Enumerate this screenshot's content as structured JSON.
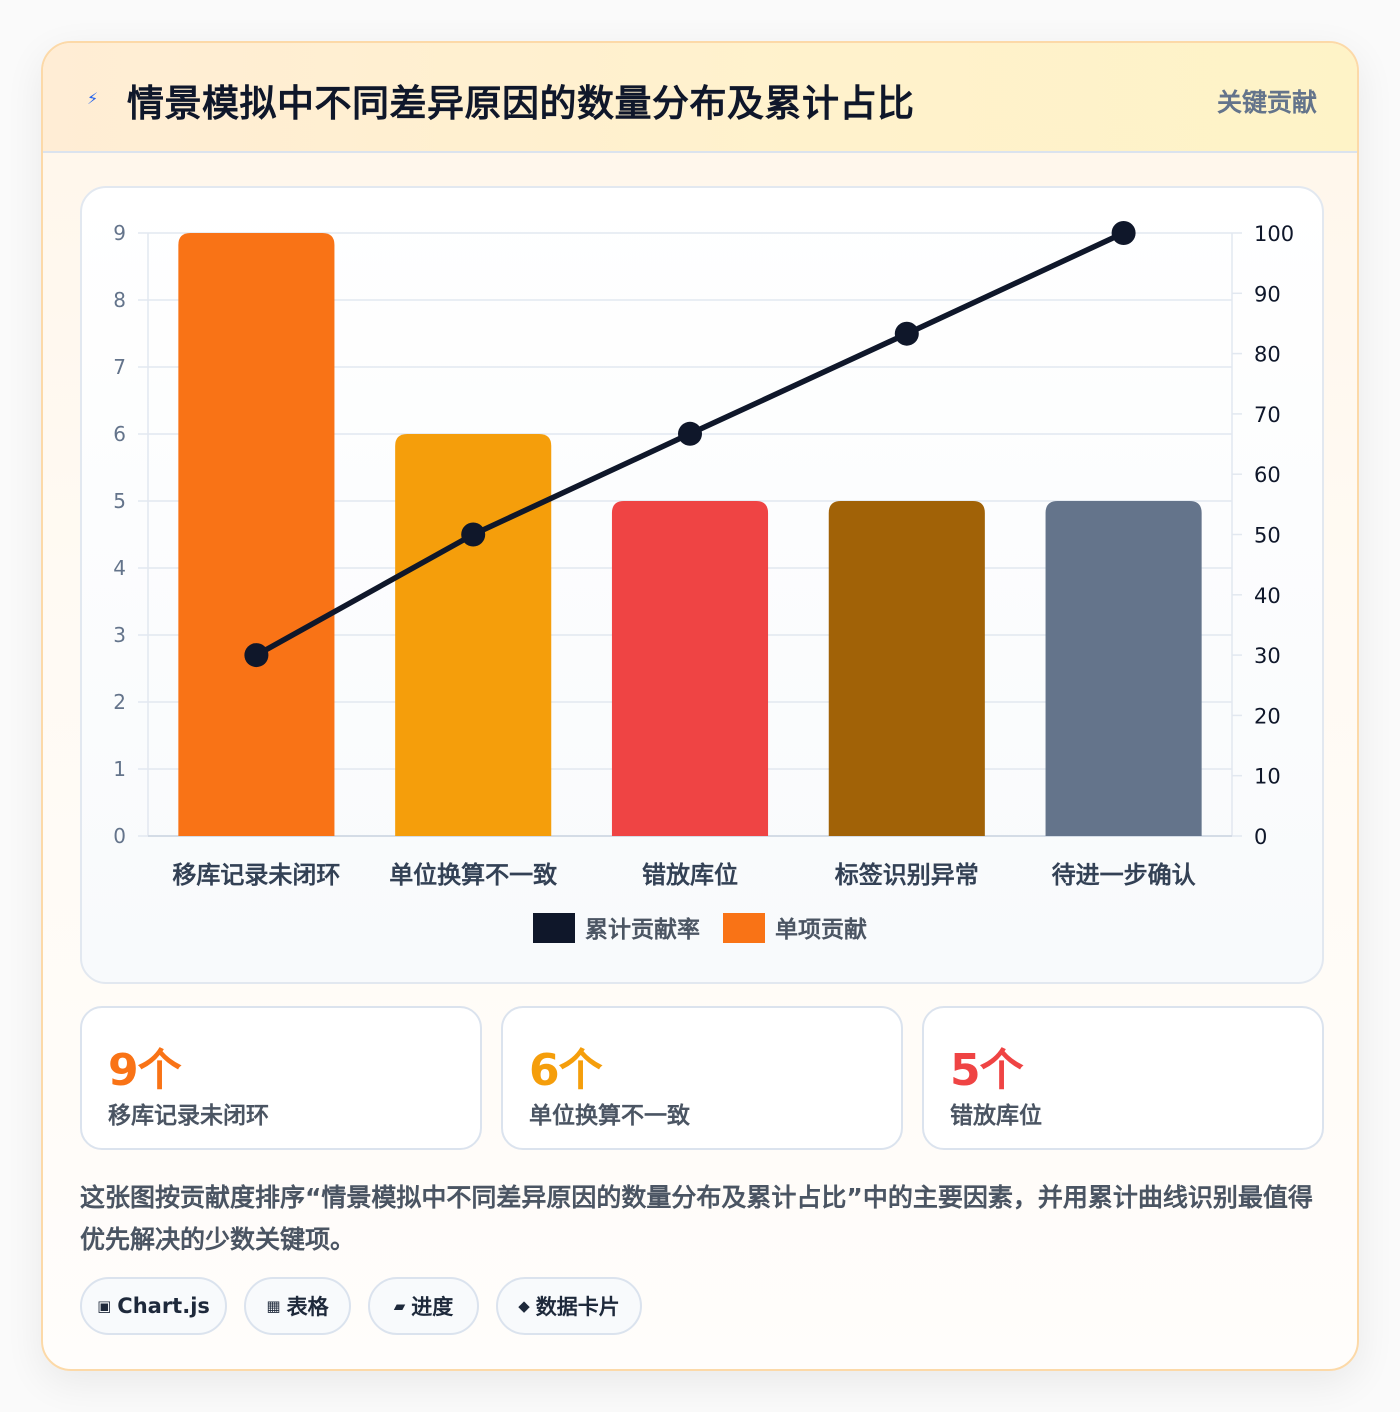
{
  "header": {
    "title": "情景模拟中不同差异原因的数量分布及累计占比",
    "tag": "关键贡献",
    "icon": "lightning-icon"
  },
  "chart_data": {
    "type": "bar",
    "title": "",
    "xlabel": "",
    "ylabel": "",
    "categories": [
      "移库记录未闭环",
      "单位换算不一致",
      "错放库位",
      "标签识别异常",
      "待进一步确认"
    ],
    "series": [
      {
        "name": "单项贡献",
        "type": "bar",
        "axis": "left",
        "values": [
          9,
          6,
          5,
          5,
          5
        ],
        "colors": [
          "#f97316",
          "#f59e0b",
          "#ef4444",
          "#a16207",
          "#64748b"
        ]
      },
      {
        "name": "累计贡献率",
        "type": "line",
        "axis": "right",
        "values": [
          30,
          50,
          66.7,
          83.3,
          100
        ],
        "color": "#0f172a"
      }
    ],
    "ylim_left": [
      0,
      9
    ],
    "yticks_left": [
      0,
      1,
      2,
      3,
      4,
      5,
      6,
      7,
      8,
      9
    ],
    "ylim_right": [
      0,
      100
    ],
    "yticks_right": [
      0,
      10,
      20,
      30,
      40,
      50,
      60,
      70,
      80,
      90,
      100
    ],
    "grid": true,
    "legend": {
      "placement": "bottom",
      "items": [
        {
          "label": "累计贡献率",
          "color": "#0f172a"
        },
        {
          "label": "单项贡献",
          "color": "#f97316"
        }
      ]
    }
  },
  "stats": [
    {
      "value": "9个",
      "label": "移库记录未闭环",
      "color": "#f97316"
    },
    {
      "value": "6个",
      "label": "单位换算不一致",
      "color": "#f59e0b"
    },
    {
      "value": "5个",
      "label": "错放库位",
      "color": "#ef4444"
    }
  ],
  "description": "这张图按贡献度排序“情景模拟中不同差异原因的数量分布及累计占比”中的主要因素，并用累计曲线识别最值得优先解决的少数关键项。",
  "chips": [
    {
      "icon": "▣",
      "label": "Chart.js"
    },
    {
      "icon": "▦",
      "label": "表格"
    },
    {
      "icon": "▰",
      "label": "进度"
    },
    {
      "icon": "◆",
      "label": "数据卡片"
    }
  ]
}
